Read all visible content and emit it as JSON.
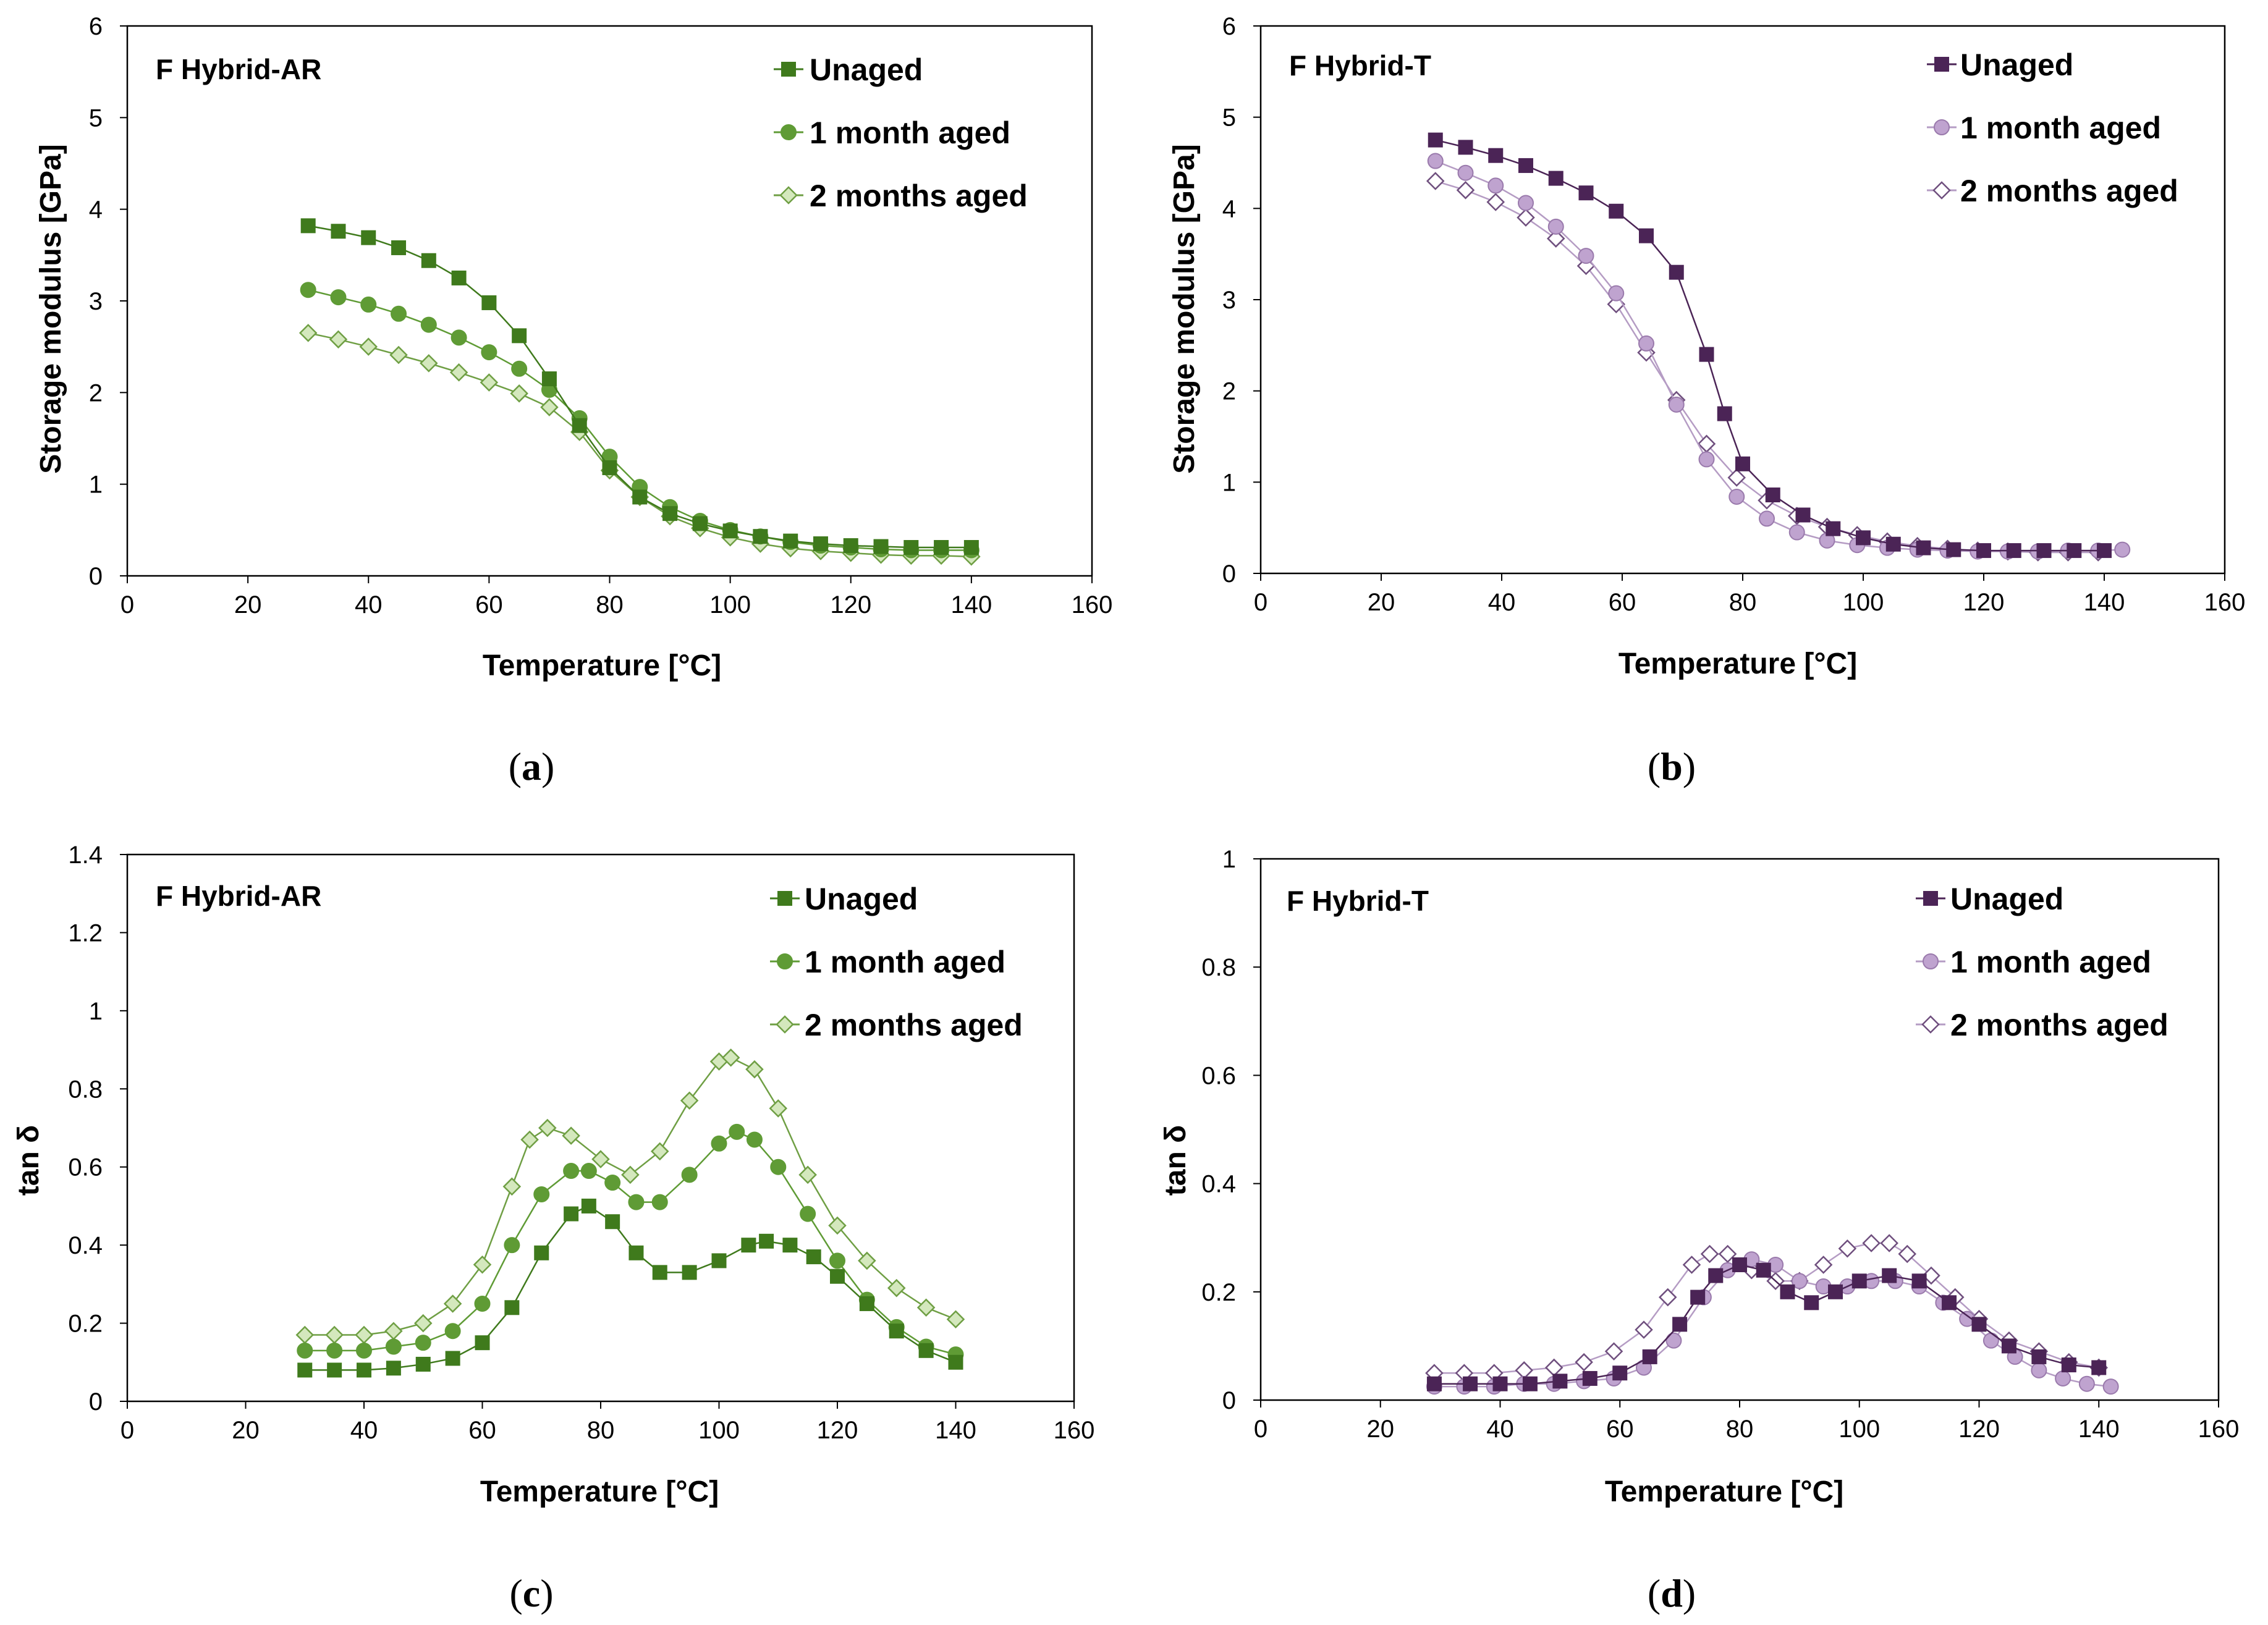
{
  "figure": {
    "panels": [
      {
        "caption_open": "(",
        "caption_letter": "a",
        "caption_close": ")"
      },
      {
        "caption_open": "(",
        "caption_letter": "b",
        "caption_close": ")"
      },
      {
        "caption_open": "(",
        "caption_letter": "c",
        "caption_close": ")"
      },
      {
        "caption_open": "(",
        "caption_letter": "d",
        "caption_close": ")"
      }
    ]
  },
  "colors": {
    "green_unaged": "#3f7a1c",
    "green_1m": "#5f9b35",
    "green_2m_stroke": "#6f9f44",
    "green_2m_fill": "#d4e8bd",
    "purple_unaged": "#4b2456",
    "purple_1m_fill": "#bfa3cf",
    "purple_1m_stroke": "#9a7aac",
    "purple_2m_stroke": "#6f4f7e",
    "purple_line_light": "#b59cc4"
  },
  "chart_data": [
    {
      "type": "scatter",
      "title": "F Hybrid-AR",
      "xlabel": "Temperature [°C]",
      "ylabel": "Storage modulus [GPa]",
      "xlim": [
        0,
        160
      ],
      "ylim": [
        0,
        6
      ],
      "xticks": [
        "0",
        "20",
        "40",
        "60",
        "80",
        "100",
        "120",
        "140",
        "160"
      ],
      "yticks": [
        "0",
        "1",
        "2",
        "3",
        "4",
        "5",
        "6"
      ],
      "legend": "top-right",
      "series": [
        {
          "name": "Unaged",
          "marker": "square",
          "x": [
            30,
            35,
            40,
            45,
            50,
            55,
            60,
            65,
            70,
            75,
            80,
            85,
            90,
            95,
            100,
            105,
            110,
            115,
            120,
            125,
            130,
            135,
            140
          ],
          "y": [
            3.82,
            3.76,
            3.69,
            3.58,
            3.44,
            3.25,
            2.98,
            2.62,
            2.15,
            1.64,
            1.18,
            0.86,
            0.68,
            0.57,
            0.49,
            0.43,
            0.38,
            0.35,
            0.33,
            0.32,
            0.31,
            0.31,
            0.31
          ]
        },
        {
          "name": "1 month aged",
          "marker": "circle",
          "x": [
            30,
            35,
            40,
            45,
            50,
            55,
            60,
            65,
            70,
            75,
            80,
            85,
            90,
            95,
            100,
            105,
            110,
            115,
            120,
            125,
            130,
            135,
            140
          ],
          "y": [
            3.12,
            3.04,
            2.96,
            2.86,
            2.74,
            2.6,
            2.44,
            2.26,
            2.03,
            1.72,
            1.3,
            0.97,
            0.75,
            0.6,
            0.5,
            0.43,
            0.37,
            0.33,
            0.31,
            0.29,
            0.28,
            0.28,
            0.28
          ]
        },
        {
          "name": "2 months aged",
          "marker": "diamond",
          "x": [
            30,
            35,
            40,
            45,
            50,
            55,
            60,
            65,
            70,
            75,
            80,
            85,
            90,
            95,
            100,
            105,
            110,
            115,
            120,
            125,
            130,
            135,
            140
          ],
          "y": [
            2.65,
            2.58,
            2.5,
            2.41,
            2.32,
            2.22,
            2.11,
            1.99,
            1.84,
            1.57,
            1.15,
            0.86,
            0.65,
            0.52,
            0.42,
            0.35,
            0.3,
            0.27,
            0.25,
            0.23,
            0.22,
            0.22,
            0.21
          ]
        }
      ]
    },
    {
      "type": "scatter",
      "title": "F Hybrid-T",
      "xlabel": "Temperature [°C]",
      "ylabel": "Storage modulus [GPa]",
      "xlim": [
        0,
        160
      ],
      "ylim": [
        0,
        6
      ],
      "xticks": [
        "0",
        "20",
        "40",
        "60",
        "80",
        "100",
        "120",
        "140",
        "160"
      ],
      "yticks": [
        "0",
        "1",
        "2",
        "3",
        "4",
        "5",
        "6"
      ],
      "legend": "top-right",
      "series": [
        {
          "name": "Unaged",
          "marker": "square",
          "x": [
            29,
            34,
            39,
            44,
            49,
            54,
            59,
            64,
            69,
            74,
            77,
            80,
            85,
            90,
            95,
            100,
            105,
            110,
            115,
            120,
            125,
            130,
            135,
            140
          ],
          "y": [
            4.75,
            4.67,
            4.58,
            4.47,
            4.33,
            4.17,
            3.97,
            3.7,
            3.3,
            2.4,
            1.75,
            1.2,
            0.86,
            0.64,
            0.49,
            0.39,
            0.32,
            0.28,
            0.26,
            0.25,
            0.25,
            0.25,
            0.25,
            0.25
          ]
        },
        {
          "name": "1 month aged",
          "marker": "circle",
          "x": [
            29,
            34,
            39,
            44,
            49,
            54,
            59,
            64,
            69,
            74,
            79,
            84,
            89,
            94,
            99,
            104,
            109,
            114,
            119,
            124,
            129,
            134,
            139,
            143
          ],
          "y": [
            4.52,
            4.39,
            4.25,
            4.06,
            3.8,
            3.48,
            3.07,
            2.52,
            1.85,
            1.25,
            0.84,
            0.6,
            0.45,
            0.36,
            0.31,
            0.28,
            0.26,
            0.25,
            0.24,
            0.24,
            0.24,
            0.25,
            0.25,
            0.26
          ]
        },
        {
          "name": "2 months aged",
          "marker": "diamond",
          "x": [
            29,
            34,
            39,
            44,
            49,
            54,
            59,
            64,
            69,
            74,
            79,
            84,
            89,
            94,
            99,
            104,
            109,
            114,
            119,
            124,
            129,
            134,
            139
          ],
          "y": [
            4.3,
            4.2,
            4.07,
            3.9,
            3.67,
            3.37,
            2.95,
            2.42,
            1.9,
            1.42,
            1.05,
            0.8,
            0.63,
            0.51,
            0.42,
            0.35,
            0.3,
            0.27,
            0.25,
            0.24,
            0.23,
            0.23,
            0.23
          ]
        }
      ]
    },
    {
      "type": "scatter",
      "title": "F Hybrid-AR",
      "xlabel": "Temperature [°C]",
      "ylabel": "tan δ",
      "xlim": [
        0,
        160
      ],
      "ylim": [
        0,
        1.4
      ],
      "xticks": [
        "0",
        "20",
        "40",
        "60",
        "80",
        "100",
        "120",
        "140",
        "160"
      ],
      "yticks": [
        "0",
        "0.2",
        "0.4",
        "0.6",
        "0.8",
        "1",
        "1.2",
        "1.4"
      ],
      "legend": "top-right",
      "series": [
        {
          "name": "Unaged",
          "marker": "square",
          "x": [
            30,
            35,
            40,
            45,
            50,
            55,
            60,
            65,
            70,
            75,
            78,
            82,
            86,
            90,
            95,
            100,
            105,
            108,
            112,
            116,
            120,
            125,
            130,
            135,
            140
          ],
          "y": [
            0.08,
            0.08,
            0.08,
            0.085,
            0.095,
            0.11,
            0.15,
            0.24,
            0.38,
            0.48,
            0.5,
            0.46,
            0.38,
            0.33,
            0.33,
            0.36,
            0.4,
            0.41,
            0.4,
            0.37,
            0.32,
            0.25,
            0.18,
            0.13,
            0.1
          ]
        },
        {
          "name": "1 month aged",
          "marker": "circle",
          "x": [
            30,
            35,
            40,
            45,
            50,
            55,
            60,
            65,
            70,
            75,
            78,
            82,
            86,
            90,
            95,
            100,
            103,
            106,
            110,
            115,
            120,
            125,
            130,
            135,
            140
          ],
          "y": [
            0.13,
            0.13,
            0.13,
            0.14,
            0.15,
            0.18,
            0.25,
            0.4,
            0.53,
            0.59,
            0.59,
            0.56,
            0.51,
            0.51,
            0.58,
            0.66,
            0.69,
            0.67,
            0.6,
            0.48,
            0.36,
            0.26,
            0.19,
            0.14,
            0.12
          ]
        },
        {
          "name": "2 months aged",
          "marker": "diamond",
          "x": [
            30,
            35,
            40,
            45,
            50,
            55,
            60,
            65,
            68,
            71,
            75,
            80,
            85,
            90,
            95,
            100,
            102,
            106,
            110,
            115,
            120,
            125,
            130,
            135,
            140
          ],
          "y": [
            0.17,
            0.17,
            0.17,
            0.18,
            0.2,
            0.25,
            0.35,
            0.55,
            0.67,
            0.7,
            0.68,
            0.62,
            0.58,
            0.64,
            0.77,
            0.87,
            0.88,
            0.85,
            0.75,
            0.58,
            0.45,
            0.36,
            0.29,
            0.24,
            0.21
          ]
        }
      ]
    },
    {
      "type": "scatter",
      "title": "F Hybrid-T",
      "xlabel": "Temperature [°C]",
      "ylabel": "tan δ",
      "xlim": [
        0,
        160
      ],
      "ylim": [
        0,
        1
      ],
      "xticks": [
        "0",
        "20",
        "40",
        "60",
        "80",
        "100",
        "120",
        "140",
        "160"
      ],
      "yticks": [
        "0",
        "0.2",
        "0.4",
        "0.6",
        "0.8",
        "1"
      ],
      "legend": "top-right",
      "series": [
        {
          "name": "Unaged",
          "marker": "square",
          "x": [
            29,
            35,
            40,
            45,
            50,
            55,
            60,
            65,
            70,
            73,
            76,
            80,
            84,
            88,
            92,
            96,
            100,
            105,
            110,
            115,
            120,
            125,
            130,
            135,
            140
          ],
          "y": [
            0.03,
            0.03,
            0.03,
            0.03,
            0.035,
            0.04,
            0.05,
            0.08,
            0.14,
            0.19,
            0.23,
            0.25,
            0.24,
            0.2,
            0.18,
            0.2,
            0.22,
            0.23,
            0.22,
            0.18,
            0.14,
            0.1,
            0.08,
            0.065,
            0.06
          ]
        },
        {
          "name": "1 month aged",
          "marker": "circle",
          "x": [
            29,
            34,
            39,
            44,
            49,
            54,
            59,
            64,
            69,
            74,
            78,
            82,
            86,
            90,
            94,
            98,
            102,
            106,
            110,
            114,
            118,
            122,
            126,
            130,
            134,
            138,
            142
          ],
          "y": [
            0.025,
            0.025,
            0.025,
            0.03,
            0.03,
            0.035,
            0.04,
            0.06,
            0.11,
            0.19,
            0.24,
            0.26,
            0.25,
            0.22,
            0.21,
            0.21,
            0.22,
            0.22,
            0.21,
            0.18,
            0.15,
            0.11,
            0.08,
            0.055,
            0.04,
            0.03,
            0.025
          ]
        },
        {
          "name": "2 months aged",
          "marker": "diamond",
          "x": [
            29,
            34,
            39,
            44,
            49,
            54,
            59,
            64,
            68,
            72,
            75,
            78,
            82,
            86,
            90,
            94,
            98,
            102,
            105,
            108,
            112,
            116,
            120,
            125,
            130,
            135,
            140
          ],
          "y": [
            0.05,
            0.05,
            0.05,
            0.055,
            0.06,
            0.07,
            0.09,
            0.13,
            0.19,
            0.25,
            0.27,
            0.27,
            0.24,
            0.22,
            0.22,
            0.25,
            0.28,
            0.29,
            0.29,
            0.27,
            0.23,
            0.19,
            0.15,
            0.11,
            0.09,
            0.07,
            0.06
          ]
        }
      ]
    }
  ]
}
